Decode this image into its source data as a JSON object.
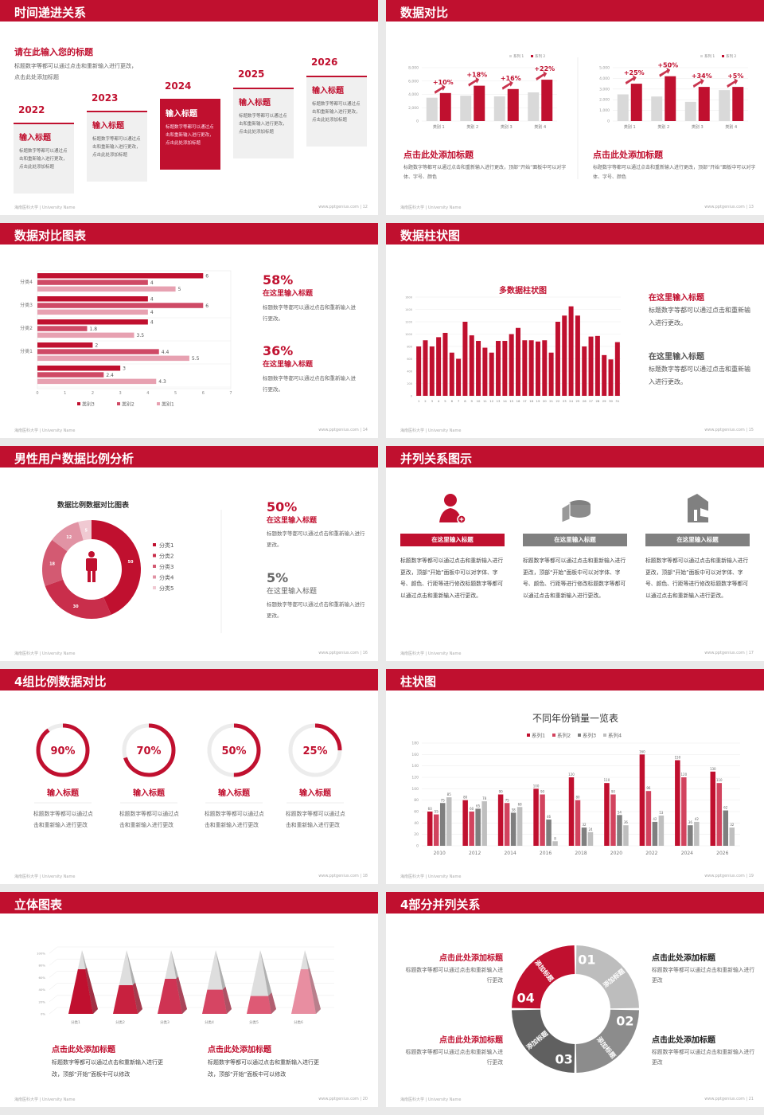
{
  "accent": "#c0102f",
  "colors": {
    "red": "#c0102f",
    "pink": "#d2435e",
    "lightpink": "#e7a1b1",
    "gray": "#d9d9d9",
    "darkgray": "#7f7f7f"
  },
  "footer": {
    "left": "海南医科大学 | University Name",
    "right": "www.pptgenius.com"
  },
  "slides": [
    {
      "title": "时间递进关系",
      "page": "12",
      "heading": "请在此输入您的标题",
      "desc": "标题数字等都可以通过点击和重新输入进行更改，点击此处添加标题",
      "steps": [
        {
          "year": "2022",
          "title": "输入标题",
          "text": "标题数字等都可以通过点击和重新输入进行更改，点击此处添加标题"
        },
        {
          "year": "2023",
          "title": "输入标题",
          "text": "标题数字等都可以通过点击和重新输入进行更改，点击此处添加标题"
        },
        {
          "year": "2024",
          "title": "输入标题",
          "text": "标题数字等都可以通过点击和重新输入进行更改，点击此处添加标题",
          "highlight": true
        },
        {
          "year": "2025",
          "title": "输入标题",
          "text": "标题数字等都可以通过点击和重新输入进行更改，点击此处添加标题"
        },
        {
          "year": "2026",
          "title": "输入标题",
          "text": "标题数字等都可以通过点击和重新输入进行更改，点击此处添加标题"
        }
      ]
    },
    {
      "title": "数据对比",
      "page": "13",
      "blocks": [
        {
          "title": "点击此处添加标题",
          "text": "标题数字等都可以通过点击和重新输入进行更改，顶部“开始”面板中可以对字体、字号、颜色"
        },
        {
          "title": "点击此处添加标题",
          "text": "标题数字等都可以通过点击和重新输入进行更改，顶部“开始”面板中可以对字体、字号、颜色"
        }
      ]
    },
    {
      "title": "数据对比图表",
      "page": "14",
      "blocks": [
        {
          "value": "58%",
          "title": "在这里输入标题",
          "text": "标题数字等都可以通过点击和重新输入进行更改。"
        },
        {
          "value": "36%",
          "title": "在这里输入标题",
          "text": "标题数字等都可以通过点击和重新输入进行更改。"
        }
      ]
    },
    {
      "title": "数据柱状图",
      "page": "15",
      "blocks": [
        {
          "title": "在这里输入标题",
          "text": "标题数字等都可以通过点击和重新输入进行更改。"
        },
        {
          "title": "在这里输入标题",
          "text": "标题数字等都可以通过点击和重新输入进行更改。"
        }
      ]
    },
    {
      "title": "男性用户数据比例分析",
      "page": "16",
      "blocks": [
        {
          "value": "50%",
          "title": "在这里输入标题",
          "text": "标题数字等都可以通过点击和重新输入进行更改。"
        },
        {
          "value": "5%",
          "title": "在这里输入标题",
          "text": "标题数字等都可以通过点击和重新输入进行更改。"
        }
      ]
    },
    {
      "title": "并列关系图示",
      "page": "17",
      "columns": [
        {
          "icon": "female-user-add-icon",
          "label": "在这里输入标题",
          "text": "标题数字等都可以通过点击和重新输入进行更改，顶部“开始”面板中可以对字体、字号、颜色、行距等进行修改标题数字等都可以通过点击和重新输入进行更改。",
          "active": true
        },
        {
          "icon": "pie-chart-3d-icon",
          "label": "在这里输入标题",
          "text": "标题数字等都可以通过点击和重新输入进行更改，顶部“开始”面板中可以对字体、字号、颜色、行距等进行修改标题数字等都可以通过点击和重新输入进行更改。"
        },
        {
          "icon": "building-icon",
          "label": "在这里输入标题",
          "text": "标题数字等都可以通过点击和重新输入进行更改，顶部“开始”面板中可以对字体、字号、颜色、行距等进行修改标题数字等都可以通过点击和重新输入进行更改。"
        }
      ]
    },
    {
      "title": "4组比例数据对比",
      "page": "18",
      "rings": [
        {
          "label": "90%",
          "percent": 90,
          "title": "输入标题",
          "text": "标题数字等都可以通过点击和重新输入进行更改"
        },
        {
          "label": "70%",
          "percent": 70,
          "title": "输入标题",
          "text": "标题数字等都可以通过点击和重新输入进行更改"
        },
        {
          "label": "50%",
          "percent": 50,
          "title": "输入标题",
          "text": "标题数字等都可以通过点击和重新输入进行更改"
        },
        {
          "label": "25%",
          "percent": 25,
          "title": "输入标题",
          "text": "标题数字等都可以通过点击和重新输入进行更改"
        }
      ]
    },
    {
      "title": "柱状图",
      "page": "19"
    },
    {
      "title": "立体图表",
      "page": "20",
      "blocks": [
        {
          "title": "点击此处添加标题",
          "text": "标题数字等都可以通过点击和重新输入进行更改，顶部“开始”面板中可以修改"
        },
        {
          "title": "点击此处添加标题",
          "text": "标题数字等都可以通过点击和重新输入进行更改，顶部“开始”面板中可以修改"
        }
      ]
    },
    {
      "title": "4部分并列关系",
      "page": "21",
      "segments": [
        {
          "num": "01",
          "label": "添加标题"
        },
        {
          "num": "02",
          "label": "添加标题"
        },
        {
          "num": "03",
          "label": "添加标题"
        },
        {
          "num": "04",
          "label": "添加标题"
        }
      ],
      "blocks": [
        {
          "title": "点击此处添加标题",
          "text": "标题数字等都可以通过点击和重新输入进行更改"
        },
        {
          "title": "点击此处添加标题",
          "text": "标题数字等都可以通过点击和重新输入进行更改"
        },
        {
          "title": "点击此处添加标题",
          "text": "标题数字等都可以通过点击和重新输入进行更改"
        },
        {
          "title": "点击此处添加标题",
          "text": "标题数字等都可以通过点击和重新输入进行更改"
        }
      ]
    }
  ],
  "chart_data": [
    {
      "type": "bar",
      "categories": [
        "类别 1",
        "类别 2",
        "类别 3",
        "类别 4"
      ],
      "series": [
        {
          "name": "系列 1",
          "values": [
            3500,
            3800,
            3700,
            4300
          ]
        },
        {
          "name": "系列 2",
          "values": [
            4200,
            5300,
            4800,
            6200
          ]
        }
      ],
      "ylim": [
        0,
        8000
      ],
      "yticks": [
        "0",
        "2,000",
        "4,000",
        "6,000",
        "8,000"
      ],
      "annotations": [
        "+10%",
        "+18%",
        "+16%",
        "+22%"
      ],
      "legend": "top-right",
      "grid": true
    },
    {
      "type": "bar",
      "categories": [
        "类别 1",
        "类别 2",
        "类别 3",
        "类别 4"
      ],
      "series": [
        {
          "name": "系列 1",
          "values": [
            2500,
            2300,
            1800,
            2900
          ]
        },
        {
          "name": "系列 2",
          "values": [
            3500,
            4200,
            3200,
            3200
          ]
        }
      ],
      "ylim": [
        0,
        5000
      ],
      "yticks": [
        "0",
        "1,000",
        "2,000",
        "3,000",
        "4,000",
        "5,000"
      ],
      "annotations": [
        "+25%",
        "+50%",
        "+34%",
        "+5%"
      ],
      "legend": "top-right",
      "grid": true
    },
    {
      "type": "bar",
      "orientation": "horizontal",
      "categories": [
        "",
        "分类1",
        "分类2",
        "分类3",
        "分类4"
      ],
      "series": [
        {
          "name": "类别3",
          "values": [
            3,
            2,
            4,
            4,
            6
          ]
        },
        {
          "name": "类别2",
          "values": [
            2.4,
            4.4,
            1.8,
            6,
            4
          ]
        },
        {
          "name": "类别1",
          "values": [
            4.3,
            5.5,
            3.5,
            4,
            5
          ]
        }
      ],
      "xlim": [
        0,
        7
      ],
      "xticks": [
        "0",
        "1",
        "2",
        "3",
        "4",
        "5",
        "6",
        "7"
      ],
      "legend": "bottom",
      "grid": true
    },
    {
      "type": "bar",
      "title": "多数据柱状图",
      "categories": [
        "1",
        "2",
        "3",
        "4",
        "5",
        "6",
        "7",
        "8",
        "9",
        "10",
        "11",
        "12",
        "13",
        "14",
        "15",
        "16",
        "17",
        "18",
        "19",
        "20",
        "21",
        "22",
        "23",
        "24",
        "25",
        "26",
        "27",
        "28",
        "29",
        "30",
        "31"
      ],
      "values": [
        800,
        900,
        800,
        950,
        1020,
        700,
        600,
        1200,
        980,
        890,
        780,
        700,
        890,
        890,
        1000,
        1100,
        900,
        900,
        880,
        900,
        700,
        1200,
        1300,
        1450,
        1300,
        800,
        960,
        970,
        660,
        590,
        870
      ],
      "ylim": [
        0,
        1600
      ],
      "yticks": [
        "0",
        "200",
        "400",
        "600",
        "800",
        "1000",
        "1200",
        "1400",
        "1600"
      ],
      "grid": true
    },
    {
      "type": "pie",
      "subtype": "donut",
      "title": "数据比例数据对比图表",
      "categories": [
        "分类1",
        "分类2",
        "分类3",
        "分类4",
        "分类5"
      ],
      "values": [
        50,
        30,
        18,
        12,
        5
      ],
      "colors": [
        "#c0102f",
        "#c92e4b",
        "#d35a72",
        "#e193a4",
        "#f0c9d2"
      ],
      "legend": "right"
    },
    {
      "type": "bar",
      "title": "不同年份销量一览表",
      "categories": [
        "2010",
        "2012",
        "2014",
        "2016",
        "2018",
        "2020",
        "2022",
        "2024",
        "2026"
      ],
      "series": [
        {
          "name": "系列1",
          "values": [
            60,
            80,
            90,
            100,
            120,
            110,
            160,
            150,
            130
          ]
        },
        {
          "name": "系列2",
          "values": [
            55,
            60,
            75,
            90,
            80,
            90,
            96,
            120,
            110
          ]
        },
        {
          "name": "系列3",
          "values": [
            75,
            65,
            58,
            46,
            32,
            54,
            42,
            36,
            62
          ]
        },
        {
          "name": "系列4",
          "values": [
            85,
            78,
            68,
            8,
            24,
            36,
            53,
            42,
            32
          ]
        }
      ],
      "colors": [
        "#c0102f",
        "#d2435e",
        "#7f7f7f",
        "#bfbfbf"
      ],
      "ylim": [
        0,
        180
      ],
      "yticks": [
        "0",
        "20",
        "40",
        "60",
        "80",
        "100",
        "120",
        "140",
        "160",
        "180"
      ],
      "legend": "top",
      "grid": true
    },
    {
      "type": "bar",
      "subtype": "3d-pyramid",
      "categories": [
        "分类1",
        "分类2",
        "分类3",
        "分类4",
        "分类5",
        "分类6"
      ],
      "values": [
        70,
        45,
        55,
        38,
        28,
        70
      ],
      "ylim": [
        0,
        100
      ],
      "yticks": [
        "0%",
        "20%",
        "40%",
        "60%",
        "80%",
        "100%"
      ],
      "colors": [
        "#c0102f",
        "#c8213f",
        "#cf3353",
        "#d64563",
        "#de5a75",
        "#e88ea1"
      ],
      "grid": true
    }
  ]
}
